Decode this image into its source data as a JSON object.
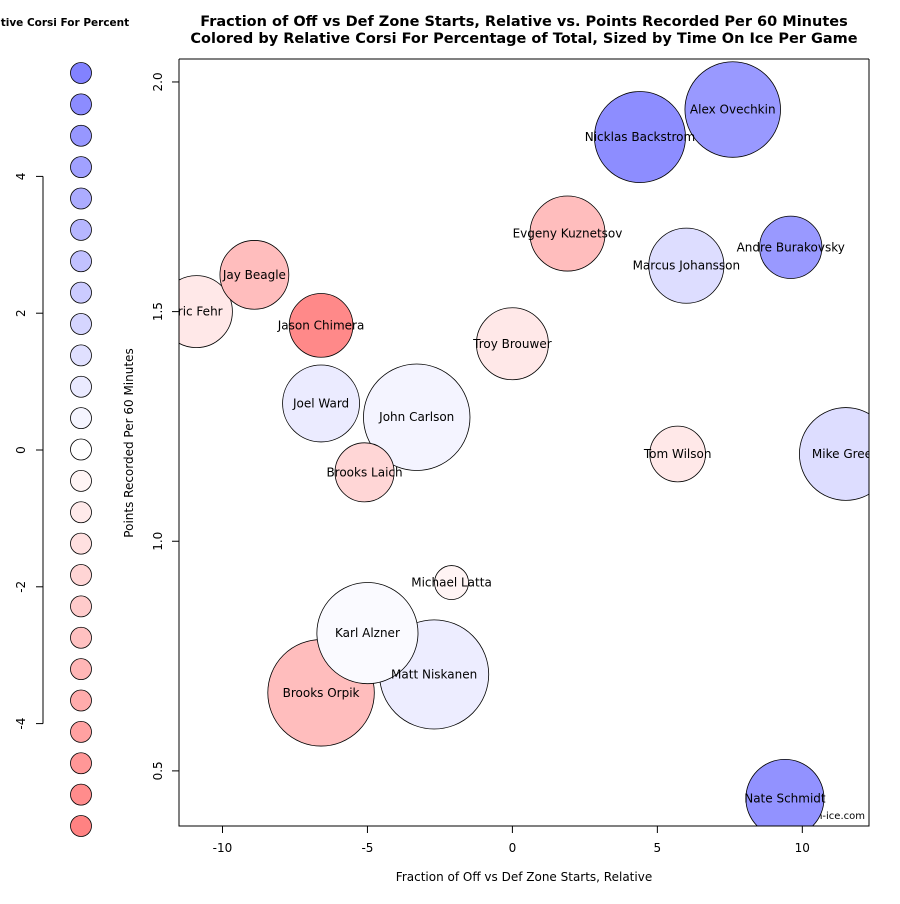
{
  "chart_data": {
    "type": "scatter",
    "title": "Fraction of Off vs Def Zone Starts, Relative vs. Points Recorded Per 60 Minutes",
    "subtitle": "Colored by Relative Corsi For Percentage of Total, Sized by Time On Ice Per Game",
    "xlabel": "Fraction of Off vs Def Zone Starts, Relative",
    "ylabel": "Points Recorded Per 60 Minutes",
    "xlim": [
      -11.5,
      12.3
    ],
    "ylim": [
      0.38,
      2.05
    ],
    "x_ticks": [
      -10,
      -5,
      0,
      5,
      10
    ],
    "y_ticks": [
      0.5,
      1.0,
      1.5,
      2.0
    ],
    "x_tick_labels": [
      "-10",
      "-5",
      "0",
      "5",
      "10"
    ],
    "y_tick_labels": [
      "0.5",
      "1.0",
      "1.5",
      "2.0"
    ],
    "grid": false,
    "credit": "war-on-ice.com",
    "color_legend": {
      "title": "Relative Corsi For Percent",
      "ticks": [
        4,
        2,
        0,
        -2,
        -4
      ],
      "tick_labels": [
        "4",
        "2",
        "0",
        "-2",
        "-4"
      ],
      "range": [
        -5.5,
        5.5
      ],
      "swatches": [
        -5.5,
        -5.04,
        -4.58,
        -4.12,
        -3.67,
        -3.21,
        -2.75,
        -2.29,
        -1.83,
        -1.38,
        -0.92,
        -0.46,
        0.0,
        0.46,
        0.92,
        1.38,
        1.83,
        2.29,
        2.75,
        3.21,
        3.67,
        4.12,
        4.58,
        5.04,
        5.5
      ]
    },
    "points": [
      {
        "name": "Alex Ovechkin",
        "x": 7.6,
        "y": 1.94,
        "toi": 20.0,
        "corsi_rel": 4.5
      },
      {
        "name": "Nicklas Backstrom",
        "x": 4.4,
        "y": 1.88,
        "toi": 19.2,
        "corsi_rel": 5.0
      },
      {
        "name": "Evgeny Kuznetsov",
        "x": 1.9,
        "y": 1.67,
        "toi": 16.5,
        "corsi_rel": -2.9
      },
      {
        "name": "Andre Burakovsky",
        "x": 9.6,
        "y": 1.64,
        "toi": 14.5,
        "corsi_rel": 4.5
      },
      {
        "name": "Marcus Johansson",
        "x": 6.0,
        "y": 1.6,
        "toi": 16.5,
        "corsi_rel": 1.5
      },
      {
        "name": "Jay Beagle",
        "x": -8.9,
        "y": 1.58,
        "toi": 15.5,
        "corsi_rel": -2.9
      },
      {
        "name": "Eric Fehr",
        "x": -10.9,
        "y": 1.5,
        "toi": 16.0,
        "corsi_rel": -1.0
      },
      {
        "name": "Jason Chimera",
        "x": -6.6,
        "y": 1.47,
        "toi": 14.7,
        "corsi_rel": -5.2
      },
      {
        "name": "Troy Brouwer",
        "x": 0.0,
        "y": 1.43,
        "toi": 16.0,
        "corsi_rel": -1.0
      },
      {
        "name": "Joel Ward",
        "x": -6.6,
        "y": 1.3,
        "toi": 16.8,
        "corsi_rel": 0.9
      },
      {
        "name": "John Carlson",
        "x": -3.3,
        "y": 1.27,
        "toi": 22.0,
        "corsi_rel": 0.5
      },
      {
        "name": "Mike Green",
        "x": 11.5,
        "y": 1.19,
        "toi": 19.5,
        "corsi_rel": 1.5
      },
      {
        "name": "Tom Wilson",
        "x": 5.7,
        "y": 1.19,
        "toi": 13.5,
        "corsi_rel": -1.0
      },
      {
        "name": "Brooks Laich",
        "x": -5.1,
        "y": 1.15,
        "toi": 14.0,
        "corsi_rel": -1.8
      },
      {
        "name": "Michael Latta",
        "x": -2.1,
        "y": 0.91,
        "toi": 10.5,
        "corsi_rel": -0.5
      },
      {
        "name": "Karl Alzner",
        "x": -5.0,
        "y": 0.8,
        "toi": 21.0,
        "corsi_rel": 0.2
      },
      {
        "name": "Matt Niskanen",
        "x": -2.7,
        "y": 0.71,
        "toi": 22.5,
        "corsi_rel": 0.8
      },
      {
        "name": "Brooks Orpik",
        "x": -6.6,
        "y": 0.67,
        "toi": 22.0,
        "corsi_rel": -2.9
      },
      {
        "name": "Nate Schmidt",
        "x": 9.4,
        "y": 0.44,
        "toi": 17.0,
        "corsi_rel": 4.8
      }
    ]
  }
}
